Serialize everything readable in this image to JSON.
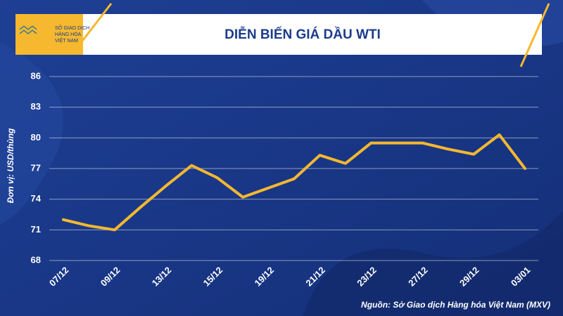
{
  "chart_data": {
    "type": "line",
    "title": "DIỄN BIẾN GIÁ DẦU WTI",
    "logo_text": [
      "SỞ GIAO DỊCH",
      "HÀNG HÓA",
      "VIỆT NAM"
    ],
    "y_label": "Đơn vị: USD/thùng",
    "source": "Nguồn: Sở Giao dịch Hàng hóa Việt Nam (MXV)",
    "categories": [
      "07/12",
      null,
      "09/12",
      null,
      "13/12",
      null,
      "15/12",
      null,
      "19/12",
      null,
      "21/12",
      null,
      "23/12",
      null,
      "27/12",
      null,
      "29/12",
      null,
      "03/01"
    ],
    "series": [
      {
        "name": "WTI",
        "color": "#f5b82e",
        "values": [
          72.0,
          71.4,
          71.0,
          73.2,
          75.3,
          77.3,
          76.1,
          74.2,
          75.1,
          76.0,
          78.3,
          77.5,
          79.5,
          79.5,
          79.5,
          78.9,
          78.4,
          80.3,
          77.0
        ]
      }
    ],
    "ylim": [
      68,
      86
    ],
    "yticks": [
      68,
      71,
      74,
      77,
      80,
      83,
      86
    ],
    "grid": true
  }
}
